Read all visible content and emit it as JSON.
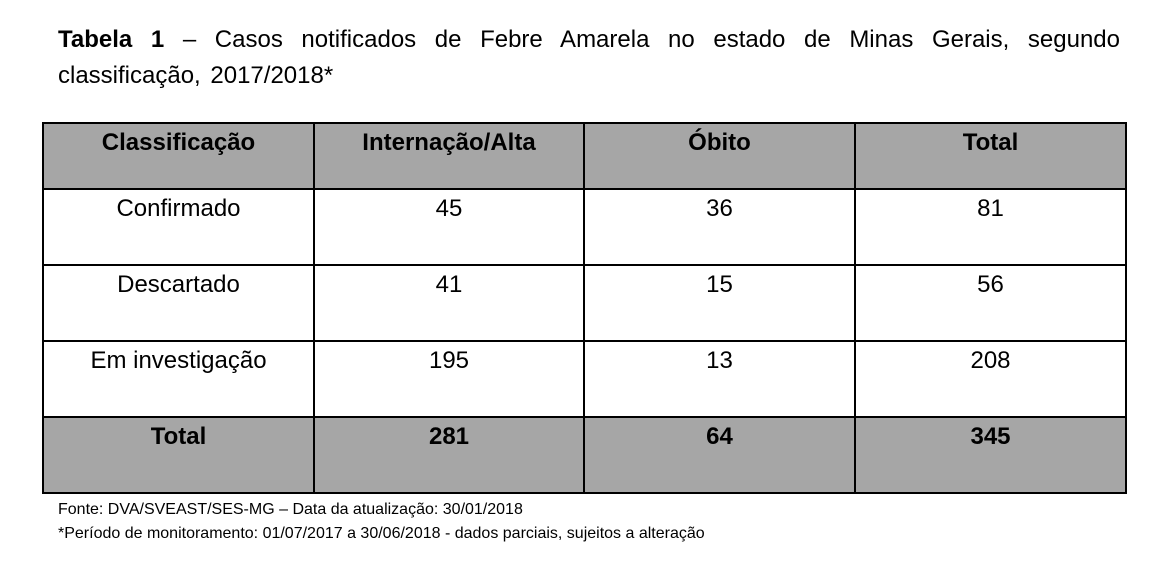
{
  "caption": {
    "label": "Tabela 1",
    "text": " – Casos notificados de Febre Amarela no estado de Minas Gerais, segundo classificação, 2017/2018*"
  },
  "table": {
    "headers": [
      "Classificação",
      "Internação/Alta",
      "Óbito",
      "Total"
    ],
    "rows": [
      [
        "Confirmado",
        "45",
        "36",
        "81"
      ],
      [
        "Descartado",
        "41",
        "15",
        "56"
      ],
      [
        "Em investigação",
        "195",
        "13",
        "208"
      ]
    ],
    "total_row": [
      "Total",
      "281",
      "64",
      "345"
    ]
  },
  "notes": {
    "source": "Fonte: DVA/SVEAST/SES-MG – Data da atualização: 30/01/2018",
    "period": "*Período de monitoramento: 01/07/2017 a 30/06/2018 - dados parciais, sujeitos a alteração"
  }
}
